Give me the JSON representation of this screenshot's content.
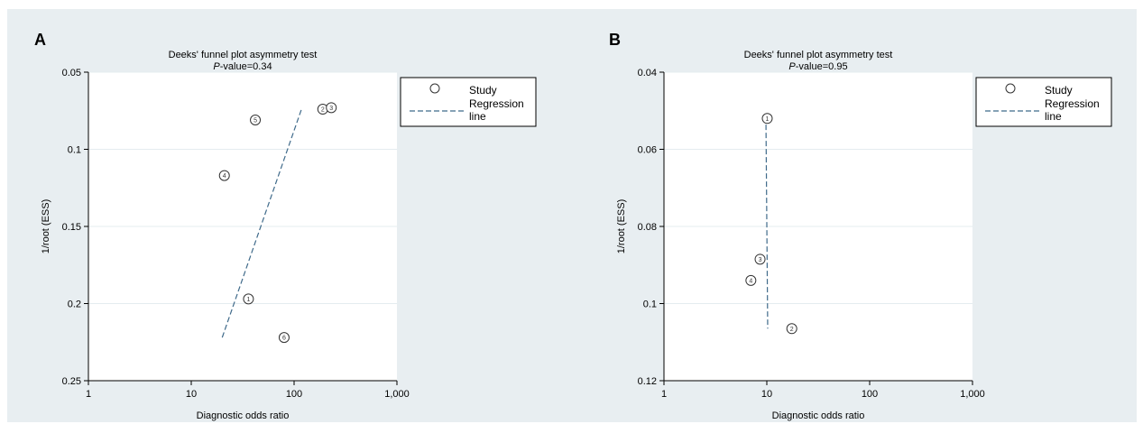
{
  "figure": {
    "background": "#e8eef1",
    "plot_background": "#ffffff",
    "grid_color": "#e4ecef"
  },
  "chart_data": [
    {
      "panel_label": "A",
      "type": "scatter",
      "title": "Deeks' funnel plot asymmetry test",
      "subtitle_italic": "P",
      "subtitle_rest": "-value=0.34",
      "xlabel": "Diagnostic odds ratio",
      "ylabel": "1/root (ESS)",
      "x_scale": "log",
      "xlim": [
        1,
        1000
      ],
      "x_ticks": [
        1,
        10,
        100,
        1000
      ],
      "x_tick_labels": [
        "1",
        "10",
        "100",
        "1,000"
      ],
      "ylim": [
        0.05,
        0.25
      ],
      "y_reversed": true,
      "y_ticks": [
        0.05,
        0.1,
        0.15,
        0.2,
        0.25
      ],
      "y_tick_labels": [
        "0.05",
        "0.1",
        "0.15",
        "0.2",
        "0.25"
      ],
      "grid": true,
      "points": [
        {
          "label": "1",
          "x": 36,
          "y": 0.197
        },
        {
          "label": "2",
          "x": 190,
          "y": 0.074
        },
        {
          "label": "3",
          "x": 230,
          "y": 0.073
        },
        {
          "label": "4",
          "x": 21,
          "y": 0.117
        },
        {
          "label": "5",
          "x": 42,
          "y": 0.081
        },
        {
          "label": "6",
          "x": 80,
          "y": 0.222
        }
      ],
      "regression_line": [
        {
          "x": 20,
          "y": 0.222
        },
        {
          "x": 118,
          "y": 0.074
        }
      ],
      "legend": {
        "position": "right",
        "study": "Study",
        "regression": [
          "Regression",
          "line"
        ]
      }
    },
    {
      "panel_label": "B",
      "type": "scatter",
      "title": "Deeks' funnel plot asymmetry test",
      "subtitle_italic": "P",
      "subtitle_rest": "-value=0.95",
      "xlabel": "Diagnostic odds ratio",
      "ylabel": "1/root (ESS)",
      "x_scale": "log",
      "xlim": [
        1,
        1000
      ],
      "x_ticks": [
        1,
        10,
        100,
        1000
      ],
      "x_tick_labels": [
        "1",
        "10",
        "100",
        "1,000"
      ],
      "ylim": [
        0.04,
        0.12
      ],
      "y_reversed": true,
      "y_ticks": [
        0.04,
        0.06,
        0.08,
        0.1,
        0.12
      ],
      "y_tick_labels": [
        "0.04",
        "0.06",
        "0.08",
        "0.1",
        "0.12"
      ],
      "grid": true,
      "points": [
        {
          "label": "1",
          "x": 10.1,
          "y": 0.052
        },
        {
          "label": "2",
          "x": 17.5,
          "y": 0.1065
        },
        {
          "label": "3",
          "x": 8.6,
          "y": 0.0885
        },
        {
          "label": "4",
          "x": 7.0,
          "y": 0.094
        }
      ],
      "regression_line": [
        {
          "x": 9.8,
          "y": 0.0515
        },
        {
          "x": 10.2,
          "y": 0.1065
        }
      ],
      "legend": {
        "position": "right",
        "study": "Study",
        "regression": [
          "Regression",
          "line"
        ]
      }
    }
  ]
}
